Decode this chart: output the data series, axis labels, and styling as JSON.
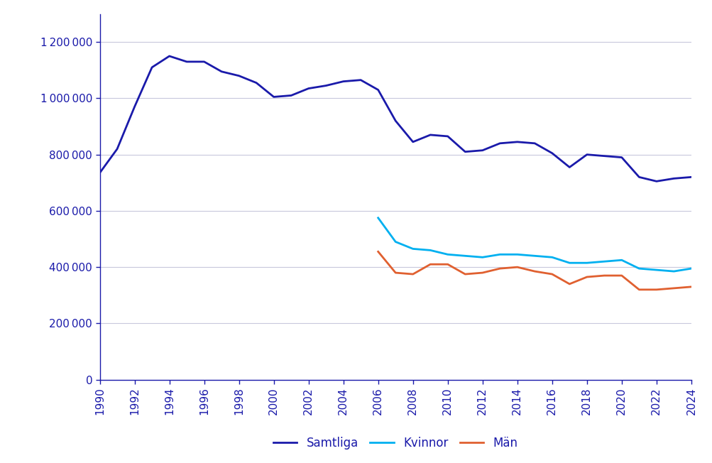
{
  "samtliga": {
    "years": [
      1990,
      1991,
      1992,
      1993,
      1994,
      1995,
      1996,
      1997,
      1998,
      1999,
      2000,
      2001,
      2002,
      2003,
      2004,
      2005,
      2006,
      2007,
      2008,
      2009,
      2010,
      2011,
      2012,
      2013,
      2014,
      2015,
      2016,
      2017,
      2018,
      2019,
      2020,
      2021,
      2022,
      2023,
      2024
    ],
    "values": [
      735000,
      820000,
      970000,
      1110000,
      1150000,
      1130000,
      1130000,
      1095000,
      1080000,
      1055000,
      1005000,
      1010000,
      1035000,
      1045000,
      1060000,
      1065000,
      1030000,
      920000,
      845000,
      870000,
      865000,
      810000,
      815000,
      840000,
      845000,
      840000,
      805000,
      755000,
      800000,
      795000,
      790000,
      720000,
      705000,
      715000,
      720000
    ],
    "color": "#1a1aaa",
    "linewidth": 2.0
  },
  "kvinnor": {
    "years": [
      2006,
      2007,
      2008,
      2009,
      2010,
      2011,
      2012,
      2013,
      2014,
      2015,
      2016,
      2017,
      2018,
      2019,
      2020,
      2021,
      2022,
      2023,
      2024
    ],
    "values": [
      575000,
      490000,
      465000,
      460000,
      445000,
      440000,
      435000,
      445000,
      445000,
      440000,
      435000,
      415000,
      415000,
      420000,
      425000,
      395000,
      390000,
      385000,
      395000
    ],
    "color": "#00b0f0",
    "linewidth": 2.0
  },
  "man": {
    "years": [
      2006,
      2007,
      2008,
      2009,
      2010,
      2011,
      2012,
      2013,
      2014,
      2015,
      2016,
      2017,
      2018,
      2019,
      2020,
      2021,
      2022,
      2023,
      2024
    ],
    "values": [
      455000,
      380000,
      375000,
      410000,
      410000,
      375000,
      380000,
      395000,
      400000,
      385000,
      375000,
      340000,
      365000,
      370000,
      370000,
      320000,
      320000,
      325000,
      330000
    ],
    "color": "#e06030",
    "linewidth": 2.0
  },
  "ylim": [
    0,
    1300000
  ],
  "yticks": [
    0,
    200000,
    400000,
    600000,
    800000,
    1000000,
    1200000
  ],
  "xlim": [
    1990,
    2024
  ],
  "xticks": [
    1990,
    1992,
    1994,
    1996,
    1998,
    2000,
    2002,
    2004,
    2006,
    2008,
    2010,
    2012,
    2014,
    2016,
    2018,
    2020,
    2022,
    2024
  ],
  "legend_labels": [
    "Samtliga",
    "Kvinnor",
    "Män"
  ],
  "legend_colors": [
    "#1a1aaa",
    "#00b0f0",
    "#e06030"
  ],
  "grid_color": "#c8c8dc",
  "background_color": "#ffffff",
  "text_color": "#1a1aaa",
  "tick_fontsize": 11,
  "legend_fontsize": 12
}
